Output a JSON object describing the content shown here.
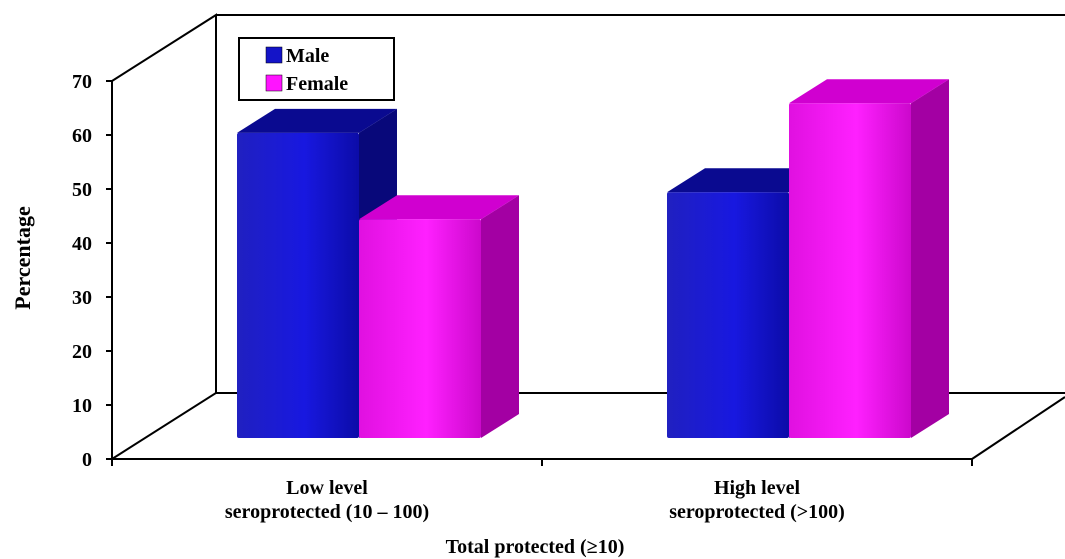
{
  "chart_data": {
    "type": "bar",
    "title": "",
    "ylabel": "Percentage",
    "xlabel": "Total protected (≥10)",
    "ylim": [
      0,
      70
    ],
    "yticks": [
      0,
      10,
      20,
      30,
      40,
      50,
      60,
      70
    ],
    "categories": [
      [
        "Low level",
        "seroprotected (10 – 100)"
      ],
      [
        "High level",
        "seroprotected (>100)"
      ]
    ],
    "series": [
      {
        "name": "Male",
        "color": "#1414c8",
        "values": [
          56.5,
          45.5
        ]
      },
      {
        "name": "Female",
        "color": "#ff14ff",
        "values": [
          40.5,
          62
        ]
      }
    ],
    "legend_position": "top-left",
    "style": "3d"
  }
}
